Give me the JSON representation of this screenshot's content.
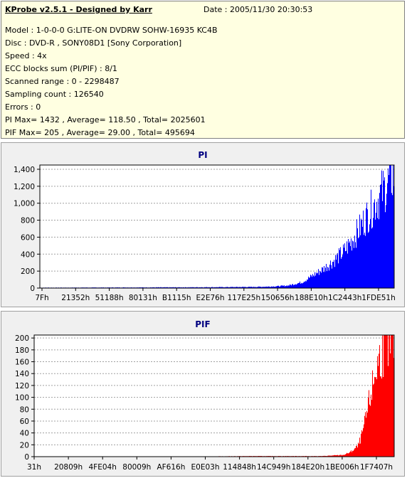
{
  "header": {
    "title": "KProbe v2.5.1 - Designed by Karr",
    "date": "Date : 2005/11/30 20:30:53"
  },
  "info_lines": [
    "Model : 1-0-0-0 G:LITE-ON DVDRW SOHW-16935 KC4B",
    "Disc : DVD-R , SONY08D1 [Sony Corporation]",
    "Speed : 4x",
    "ECC blocks sum (PI/PIF) : 8/1",
    "Scanned range : 0 - 2298487",
    "Sampling count : 126540",
    "Errors : 0",
    "PI Max= 1432 , Average= 118.50 , Total= 2025601",
    "PIF Max= 205 , Average= 29.00 , Total= 495694"
  ],
  "chart_data": [
    {
      "type": "area",
      "title": "PI",
      "color": "#0000ff",
      "ylim": [
        0,
        1450
      ],
      "yticks": [
        0,
        200,
        400,
        600,
        800,
        1000,
        1200,
        1400
      ],
      "ytick_labels": [
        "0",
        "200",
        "400",
        "600",
        "800",
        "1,000",
        "1,200",
        "1,400"
      ],
      "xtick_labels": [
        "7Fh",
        "21352h",
        "51188h",
        "80131h",
        "B1115h",
        "E2E76h",
        "117E25h",
        "150656h",
        "188E10h",
        "1C2443h",
        "1FDE51h"
      ],
      "grid": true,
      "x_range": [
        0,
        1
      ],
      "x": [
        0.0,
        0.1,
        0.2,
        0.3,
        0.4,
        0.5,
        0.6,
        0.65,
        0.7,
        0.74,
        0.77,
        0.8,
        0.83,
        0.86,
        0.88,
        0.9,
        0.92,
        0.94,
        0.96,
        0.98,
        1.0
      ],
      "y": [
        5,
        6,
        7,
        8,
        9,
        11,
        14,
        18,
        30,
        70,
        150,
        230,
        330,
        450,
        570,
        700,
        850,
        980,
        1120,
        1260,
        1380
      ],
      "peak": 1432
    },
    {
      "type": "area",
      "title": "PIF",
      "color": "#ff0000",
      "ylim": [
        0,
        205
      ],
      "yticks": [
        0,
        20,
        40,
        60,
        80,
        100,
        120,
        140,
        160,
        180,
        200
      ],
      "ytick_labels": [
        "0",
        "20",
        "40",
        "60",
        "80",
        "100",
        "120",
        "140",
        "160",
        "180",
        "200"
      ],
      "xtick_labels": [
        "31h",
        "20809h",
        "4FE04h",
        "80009h",
        "AF616h",
        "E0E03h",
        "114848h",
        "14C949h",
        "184E20h",
        "1BE006h",
        "1F7407h"
      ],
      "grid": true,
      "x_range": [
        0,
        1
      ],
      "x": [
        0.0,
        0.2,
        0.4,
        0.6,
        0.8,
        0.86,
        0.88,
        0.9,
        0.91,
        0.92,
        0.93,
        0.94,
        0.95,
        0.96,
        0.97,
        0.98,
        0.99,
        1.0
      ],
      "y": [
        0,
        0,
        0,
        1,
        1,
        3,
        8,
        18,
        35,
        60,
        90,
        120,
        150,
        170,
        185,
        192,
        196,
        198
      ],
      "peak": 205
    }
  ]
}
